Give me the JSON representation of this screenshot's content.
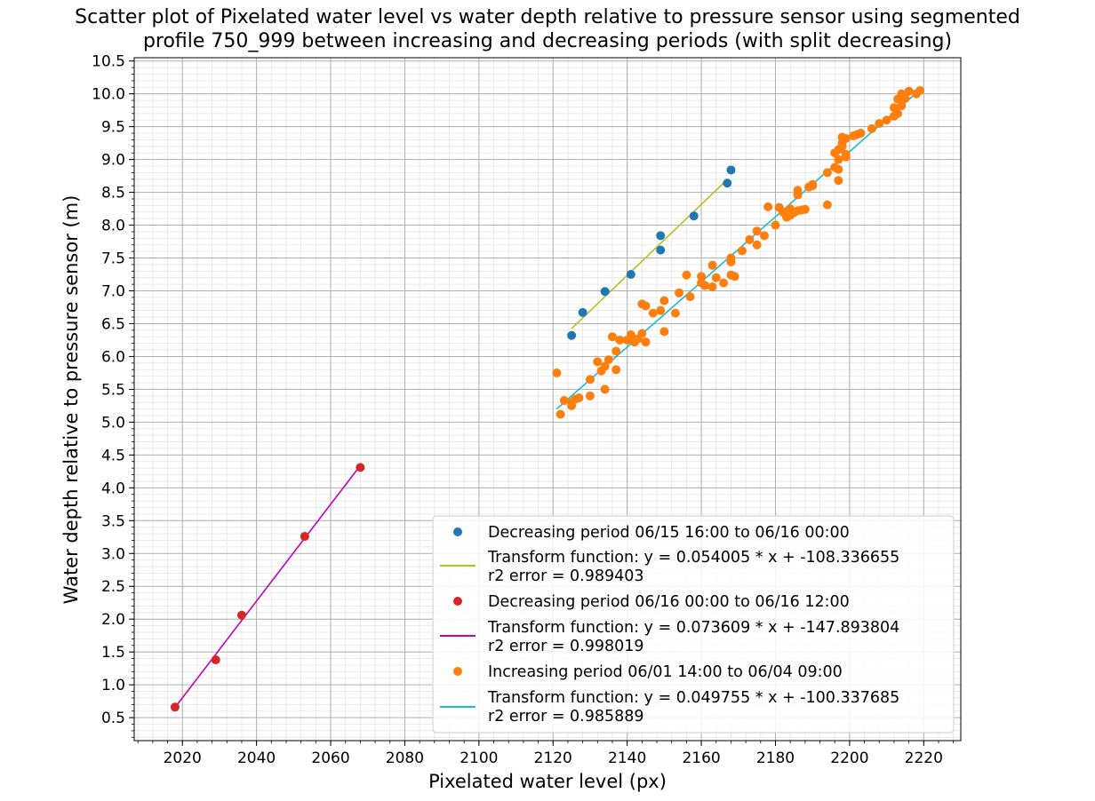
{
  "chart_data": {
    "type": "scatter",
    "title_line1": "Scatter plot of Pixelated water level vs water depth relative to pressure sensor using segmented",
    "title_line2": "profile 750_999 between increasing and decreasing periods (with split decreasing)",
    "xlabel": "Pixelated water level (px)",
    "ylabel": "Water depth relative to pressure sensor (m)",
    "xlim": [
      2007,
      2230
    ],
    "ylim": [
      0.15,
      10.55
    ],
    "xticks": [
      2020,
      2040,
      2060,
      2080,
      2100,
      2120,
      2140,
      2160,
      2180,
      2200,
      2220
    ],
    "yticks": [
      0.5,
      1.0,
      1.5,
      2.0,
      2.5,
      3.0,
      3.5,
      4.0,
      4.5,
      5.0,
      5.5,
      6.0,
      6.5,
      7.0,
      7.5,
      8.0,
      8.5,
      9.0,
      9.5,
      10.0,
      10.5
    ],
    "ytick_labels": [
      "0.5",
      "1.0",
      "1.5",
      "2.0",
      "2.5",
      "3.0",
      "3.5",
      "4.0",
      "4.5",
      "5.0",
      "5.5",
      "6.0",
      "6.5",
      "7.0",
      "7.5",
      "8.0",
      "8.5",
      "9.0",
      "9.5",
      "10.0",
      "10.5"
    ],
    "grid": true,
    "minor_grid": true,
    "legend_position": "lower-right",
    "series": [
      {
        "name": "Decreasing period 06/15 16:00 to 06/16 00:00",
        "color": "#1f77b4",
        "points": [
          [
            2125,
            6.32
          ],
          [
            2128,
            6.67
          ],
          [
            2134,
            6.99
          ],
          [
            2141,
            7.25
          ],
          [
            2149,
            7.62
          ],
          [
            2149,
            7.84
          ],
          [
            2158,
            8.14
          ],
          [
            2167,
            8.64
          ],
          [
            2168,
            8.84
          ]
        ],
        "fit": {
          "label_line1": "Transform function: y = 0.054005 * x + -108.336655",
          "label_line2": "r2 error = 0.989403",
          "color": "#bcbd22",
          "x_range": [
            2125,
            2167
          ]
        }
      },
      {
        "name": "Decreasing period 06/16 00:00 to 06/16 12:00",
        "color": "#d62728",
        "points": [
          [
            2018,
            0.66
          ],
          [
            2029,
            1.38
          ],
          [
            2036,
            2.06
          ],
          [
            2053,
            3.26
          ],
          [
            2068,
            4.31
          ]
        ],
        "fit": {
          "label_line1": "Transform function: y = 0.073609 * x + -147.893804",
          "label_line2": "r2 error = 0.998019",
          "color": "#bf00bf",
          "x_range": [
            2018,
            2068
          ]
        }
      },
      {
        "name": "Increasing period 06/01 14:00 to 06/04 09:00",
        "color": "#ff7f0e",
        "points": [
          [
            2121,
            5.75
          ],
          [
            2122,
            5.12
          ],
          [
            2123,
            5.33
          ],
          [
            2125,
            5.25
          ],
          [
            2125,
            5.3
          ],
          [
            2126,
            5.35
          ],
          [
            2127,
            5.37
          ],
          [
            2130,
            5.4
          ],
          [
            2130,
            5.65
          ],
          [
            2132,
            5.92
          ],
          [
            2133,
            5.78
          ],
          [
            2134,
            5.5
          ],
          [
            2134,
            5.85
          ],
          [
            2135,
            5.95
          ],
          [
            2136,
            6.3
          ],
          [
            2137,
            6.08
          ],
          [
            2137,
            5.8
          ],
          [
            2138,
            6.25
          ],
          [
            2140,
            6.25
          ],
          [
            2141,
            6.27
          ],
          [
            2141,
            6.33
          ],
          [
            2142,
            6.22
          ],
          [
            2143,
            6.27
          ],
          [
            2144,
            6.35
          ],
          [
            2144,
            6.8
          ],
          [
            2145,
            6.77
          ],
          [
            2145,
            6.22
          ],
          [
            2147,
            6.66
          ],
          [
            2149,
            6.7
          ],
          [
            2150,
            6.85
          ],
          [
            2150,
            6.38
          ],
          [
            2153,
            6.66
          ],
          [
            2154,
            6.97
          ],
          [
            2156,
            7.24
          ],
          [
            2157,
            6.91
          ],
          [
            2160,
            7.22
          ],
          [
            2160,
            7.12
          ],
          [
            2161,
            7.08
          ],
          [
            2163,
            7.06
          ],
          [
            2163,
            7.39
          ],
          [
            2164,
            7.2
          ],
          [
            2166,
            7.12
          ],
          [
            2168,
            7.44
          ],
          [
            2168,
            7.5
          ],
          [
            2168,
            7.24
          ],
          [
            2169,
            7.22
          ],
          [
            2171,
            7.61
          ],
          [
            2173,
            7.78
          ],
          [
            2175,
            7.91
          ],
          [
            2175,
            7.7
          ],
          [
            2177,
            7.84
          ],
          [
            2178,
            8.28
          ],
          [
            2180,
            8.0
          ],
          [
            2181,
            8.27
          ],
          [
            2182,
            8.2
          ],
          [
            2183,
            8.12
          ],
          [
            2184,
            8.15
          ],
          [
            2184,
            8.25
          ],
          [
            2185,
            8.19
          ],
          [
            2186,
            8.22
          ],
          [
            2186,
            8.46
          ],
          [
            2186,
            8.53
          ],
          [
            2187,
            8.23
          ],
          [
            2188,
            8.24
          ],
          [
            2189,
            8.58
          ],
          [
            2190,
            8.62
          ],
          [
            2190,
            8.6
          ],
          [
            2194,
            8.31
          ],
          [
            2194,
            8.8
          ],
          [
            2196,
            9.1
          ],
          [
            2196,
            8.88
          ],
          [
            2197,
            9.0
          ],
          [
            2197,
            9.15
          ],
          [
            2197,
            8.68
          ],
          [
            2197,
            8.85
          ],
          [
            2198,
            9.25
          ],
          [
            2198,
            9.34
          ],
          [
            2198,
            9.2
          ],
          [
            2199,
            9.32
          ],
          [
            2199,
            9.04
          ],
          [
            2199,
            9.08
          ],
          [
            2201,
            9.36
          ],
          [
            2202,
            9.38
          ],
          [
            2203,
            9.4
          ],
          [
            2206,
            9.47
          ],
          [
            2208,
            9.55
          ],
          [
            2210,
            9.6
          ],
          [
            2212,
            9.66
          ],
          [
            2212,
            9.79
          ],
          [
            2213,
            9.7
          ],
          [
            2213,
            9.92
          ],
          [
            2214,
            9.82
          ],
          [
            2214,
            10.0
          ],
          [
            2215,
            9.93
          ],
          [
            2216,
            10.04
          ],
          [
            2218,
            10.0
          ],
          [
            2219,
            10.05
          ]
        ],
        "fit": {
          "label_line1": "Transform function: y = 0.049755 * x + -100.337685",
          "label_line2": "r2 error = 0.985889",
          "color": "#17becf",
          "x_range": [
            2121,
            2219
          ]
        }
      }
    ]
  }
}
